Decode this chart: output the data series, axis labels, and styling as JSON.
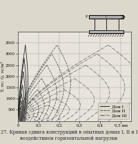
{
  "ylabel": "T, тс; Q, тс/м²",
  "xlim": [
    0,
    0.55
  ],
  "ylim": [
    0,
    4000
  ],
  "yticks": [
    500,
    1000,
    1500,
    2000,
    2500,
    3000,
    3500
  ],
  "xticks": [
    0.1,
    0.2,
    0.3,
    0.4,
    0.5
  ],
  "xtick_labels": [
    "0,1",
    "0,2",
    "0,3",
    "0,4",
    "0,5 мм"
  ],
  "ytick_labels": [
    "500",
    "1000",
    "1500",
    "2000",
    "2500",
    "3000",
    "3500"
  ],
  "grid_color": "#888888",
  "bg_color": "#e8e4dc",
  "paper_color": "#ddd8cc",
  "caption": "Рис. 127. Кривая сдвига конструкций в опытных домах I, II и III под\nвоздействием горизонтальной нагрузки",
  "caption_fontsize": 4.8,
  "axis_fontsize": 4.5,
  "tick_fontsize": 4.0,
  "legend_fontsize": 4.2,
  "dom1_color": "#222222",
  "dom2_color": "#444444",
  "dom3_color": "#555555",
  "dom1_lw": 0.6,
  "dom2_lw": 0.55,
  "dom3_lw": 0.5,
  "dom1_cycles": [
    {
      "x_max": 0.008,
      "y_max": 200
    },
    {
      "x_max": 0.01,
      "y_max": 350
    },
    {
      "x_max": 0.013,
      "y_max": 600
    },
    {
      "x_max": 0.016,
      "y_max": 900
    },
    {
      "x_max": 0.018,
      "y_max": 1200
    },
    {
      "x_max": 0.022,
      "y_max": 1600
    },
    {
      "x_max": 0.026,
      "y_max": 2200
    },
    {
      "x_max": 0.03,
      "y_max": 2800
    },
    {
      "x_max": 0.036,
      "y_max": 3400
    }
  ],
  "dom2_cycles": [
    {
      "x_max": 0.03,
      "y_max": 200
    },
    {
      "x_max": 0.042,
      "y_max": 400
    },
    {
      "x_max": 0.058,
      "y_max": 700
    },
    {
      "x_max": 0.075,
      "y_max": 1000
    },
    {
      "x_max": 0.095,
      "y_max": 1400
    },
    {
      "x_max": 0.115,
      "y_max": 1900
    },
    {
      "x_max": 0.14,
      "y_max": 2500
    },
    {
      "x_max": 0.165,
      "y_max": 3000
    },
    {
      "x_max": 0.19,
      "y_max": 3400
    }
  ],
  "dom3_cycles": [
    {
      "x_max": 0.08,
      "y_max": 200
    },
    {
      "x_max": 0.11,
      "y_max": 400
    },
    {
      "x_max": 0.145,
      "y_max": 700
    },
    {
      "x_max": 0.185,
      "y_max": 1000
    },
    {
      "x_max": 0.225,
      "y_max": 1400
    },
    {
      "x_max": 0.275,
      "y_max": 1900
    },
    {
      "x_max": 0.33,
      "y_max": 2500
    },
    {
      "x_max": 0.385,
      "y_max": 3000
    },
    {
      "x_max": 0.44,
      "y_max": 3400
    }
  ]
}
